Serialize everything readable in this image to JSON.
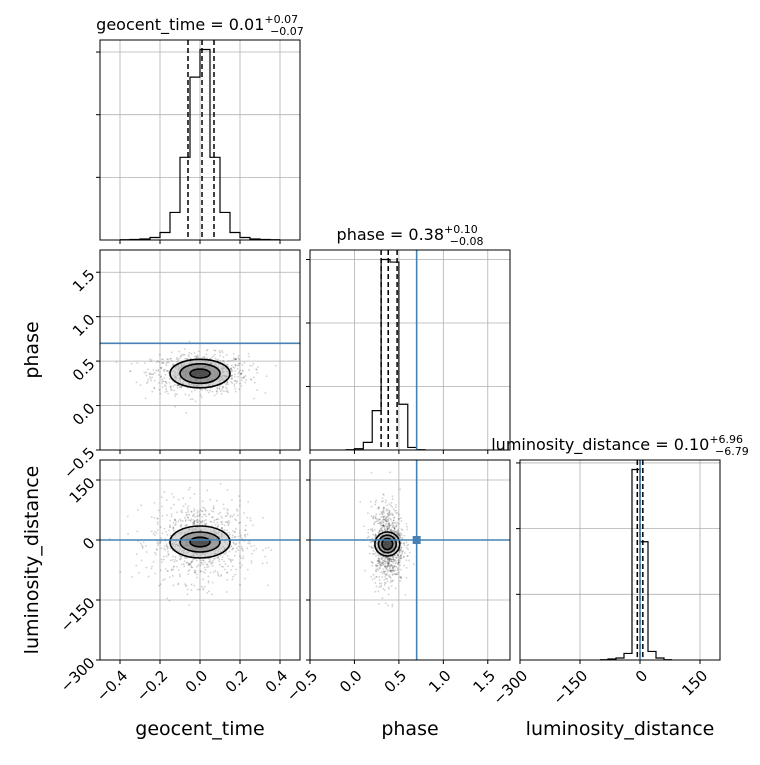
{
  "chart_data": {
    "type": "corner",
    "parameters": [
      "geocent_time",
      "phase",
      "luminosity_distance"
    ],
    "axis_labels": {
      "geocent_time": "geocent_time",
      "phase": "phase",
      "luminosity_distance": "luminosity_distance"
    },
    "truths": {
      "geocent_time": null,
      "phase": 0.7,
      "luminosity_distance": 0
    },
    "truth_color": "#4682b4",
    "ranges": {
      "geocent_time": [
        -0.5,
        0.5
      ],
      "phase": [
        -0.5,
        1.75
      ],
      "luminosity_distance": [
        -300,
        200
      ]
    },
    "ticks": {
      "geocent_time": {
        "values": [
          -0.4,
          -0.2,
          0.0,
          0.2,
          0.4
        ],
        "labels": [
          "−0.4",
          "−0.2",
          "0.0",
          "0.2",
          "0.4"
        ]
      },
      "phase": {
        "values": [
          -0.5,
          0.0,
          0.5,
          1.0,
          1.5
        ],
        "labels": [
          "−0.5",
          "0.0",
          "0.5",
          "1.0",
          "1.5"
        ]
      },
      "luminosity_distance": {
        "values": [
          -300,
          -150,
          0,
          150
        ],
        "labels": [
          "−300",
          "−150",
          "0",
          "150"
        ]
      }
    },
    "marginals": {
      "geocent_time": {
        "title": {
          "name": "geocent_time",
          "value": "0.01",
          "plus": "+0.07",
          "minus": "−0.07"
        },
        "quantiles": [
          -0.06,
          0.01,
          0.07
        ],
        "bin_edges": [
          -0.4,
          -0.35,
          -0.3,
          -0.25,
          -0.2,
          -0.15,
          -0.1,
          -0.05,
          0.0,
          0.05,
          0.1,
          0.15,
          0.2,
          0.25,
          0.3,
          0.35,
          0.4
        ],
        "counts": [
          1,
          2,
          4,
          10,
          30,
          110,
          330,
          650,
          760,
          330,
          110,
          30,
          10,
          4,
          2,
          1
        ],
        "y_ticks": [
          250,
          500,
          750
        ]
      },
      "phase": {
        "title": {
          "name": "phase",
          "value": "0.38",
          "plus": "+0.10",
          "minus": "−0.08"
        },
        "quantiles": [
          0.3,
          0.38,
          0.48
        ],
        "bin_edges": [
          -0.1,
          0.0,
          0.1,
          0.2,
          0.3,
          0.4,
          0.5,
          0.6,
          0.7,
          0.8
        ],
        "counts": [
          2,
          10,
          60,
          310,
          1500,
          1480,
          360,
          20,
          2
        ],
        "y_ticks": [
          500,
          1000,
          1500
        ]
      },
      "luminosity_distance": {
        "title": {
          "name": "luminosity_distance",
          "value": "0.10",
          "plus": "+6.96",
          "minus": "−6.79"
        },
        "quantiles": [
          -6.69,
          0.1,
          7.06
        ],
        "bin_edges": [
          -100,
          -80,
          -60,
          -40,
          -20,
          0,
          20,
          40,
          60,
          80
        ],
        "counts": [
          5,
          15,
          30,
          100,
          2900,
          1800,
          130,
          30,
          5
        ],
        "y_ticks": [
          1000,
          2000,
          3000
        ]
      }
    },
    "joint": [
      {
        "x": "geocent_time",
        "y": "phase",
        "center": [
          0.0,
          0.36
        ],
        "contour_halfwidths": [
          [
            0.05,
            0.05
          ],
          [
            0.1,
            0.11
          ],
          [
            0.15,
            0.16
          ]
        ],
        "scatter_spread": [
          0.12,
          0.11
        ]
      },
      {
        "x": "geocent_time",
        "y": "luminosity_distance",
        "center": [
          0.0,
          -5
        ],
        "contour_halfwidths": [
          [
            0.05,
            12
          ],
          [
            0.1,
            25
          ],
          [
            0.15,
            40
          ]
        ],
        "scatter_spread": [
          0.12,
          50
        ]
      },
      {
        "x": "phase",
        "y": "luminosity_distance",
        "center": [
          0.37,
          -10
        ],
        "contour_halfwidths": [
          [
            0.06,
            14
          ],
          [
            0.1,
            22
          ],
          [
            0.14,
            30
          ]
        ],
        "scatter_spread": [
          0.09,
          50
        ]
      }
    ]
  }
}
